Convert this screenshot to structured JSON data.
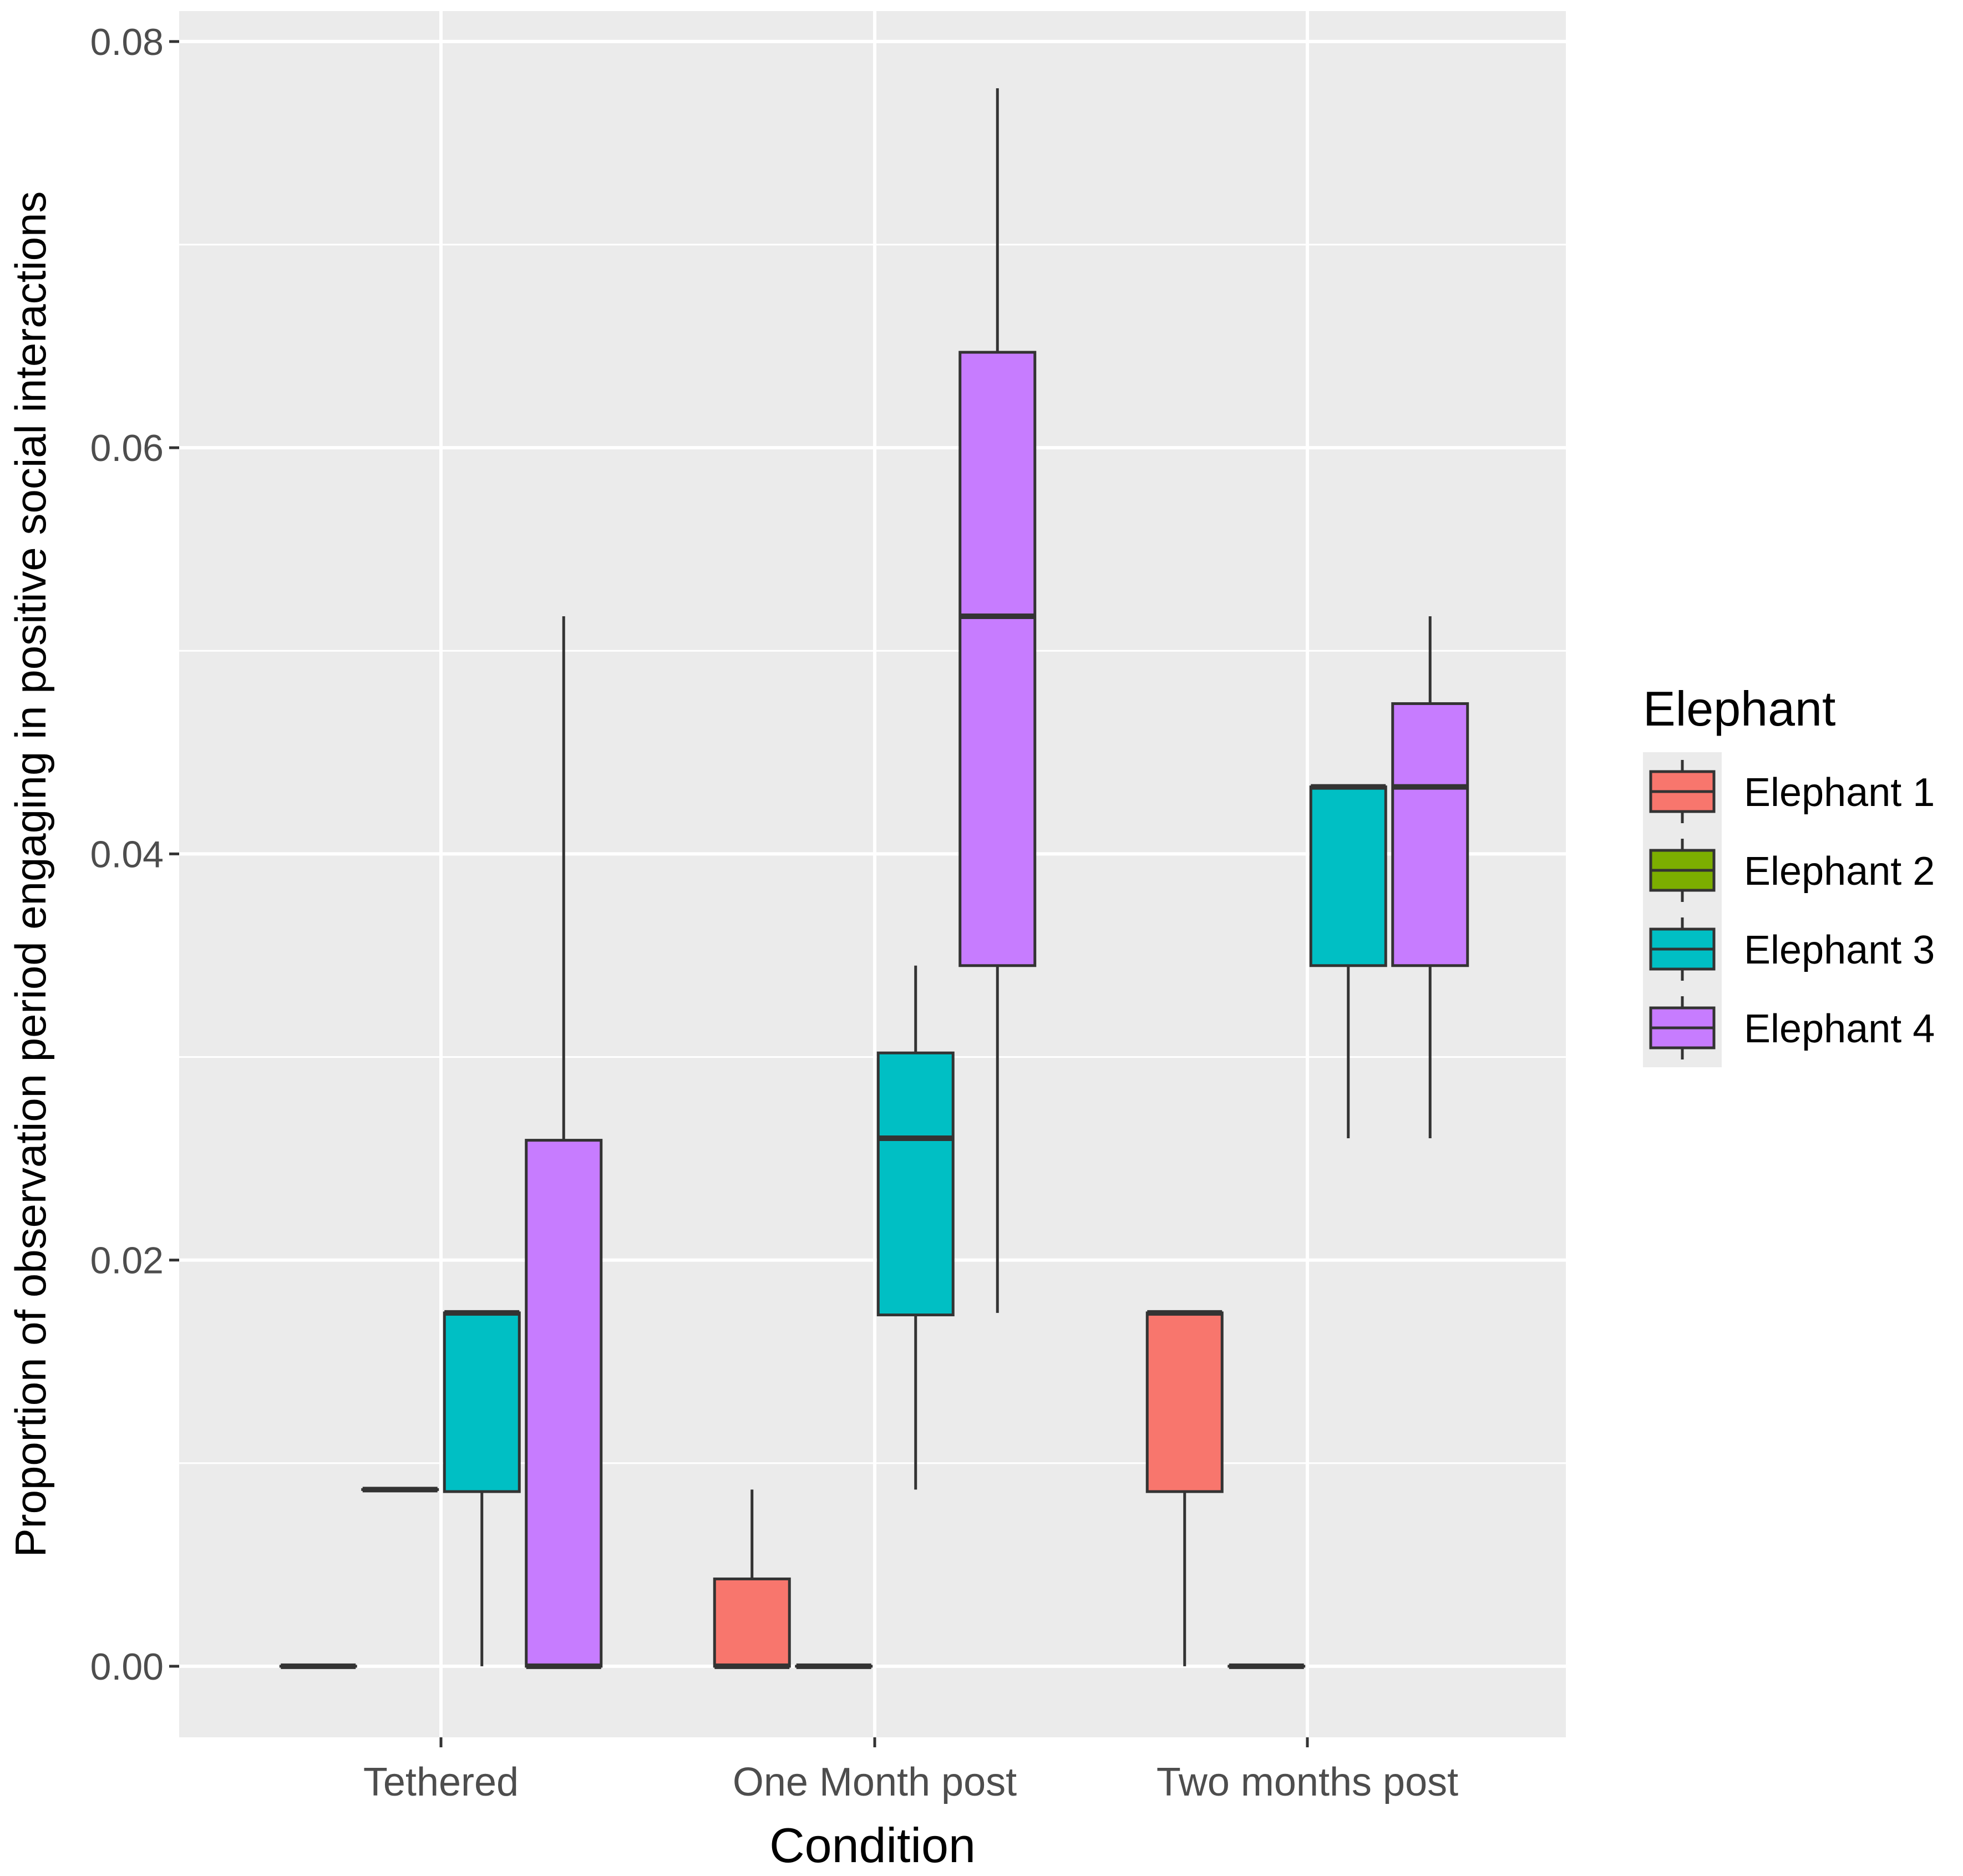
{
  "chart_data": {
    "type": "boxplot",
    "title": "",
    "xlabel": "Condition",
    "ylabel": "Proportion of observation period engaging in positive social interactions",
    "ylim": [
      -0.0035,
      0.0815
    ],
    "yticks": [
      0.0,
      0.02,
      0.04,
      0.06,
      0.08
    ],
    "ytick_labels": [
      "0.00",
      "0.02",
      "0.04",
      "0.06",
      "0.08"
    ],
    "categories": [
      "Tethered",
      "One Month post",
      "Two months post"
    ],
    "legend": {
      "title": "Elephant",
      "position": "right",
      "entries": [
        "Elephant 1",
        "Elephant 2",
        "Elephant 3",
        "Elephant 4"
      ]
    },
    "colors": {
      "Elephant 1": "#F8766D",
      "Elephant 2": "#7CAE00",
      "Elephant 3": "#00BFC4",
      "Elephant 4": "#C77CFF",
      "panel": "#EBEBEB",
      "grid": "#FFFFFF",
      "outline": "#333333"
    },
    "series": [
      {
        "name": "Elephant 1",
        "boxes": [
          {
            "category": "Tethered",
            "min": 0.0,
            "q1": 0.0,
            "median": 0.0,
            "q3": 0.0,
            "max": 0.0
          },
          {
            "category": "One Month post",
            "min": 0.0,
            "q1": 0.0,
            "median": 0.0,
            "q3": 0.0043,
            "max": 0.0087
          },
          {
            "category": "Two months post",
            "min": 0.0,
            "q1": 0.0086,
            "median": 0.0174,
            "q3": 0.0174,
            "max": 0.0174
          }
        ]
      },
      {
        "name": "Elephant 2",
        "boxes": [
          {
            "category": "Tethered",
            "min": 0.0087,
            "q1": 0.0087,
            "median": 0.0087,
            "q3": 0.0087,
            "max": 0.0087
          },
          {
            "category": "One Month post",
            "min": 0.0,
            "q1": 0.0,
            "median": 0.0,
            "q3": 0.0,
            "max": 0.0
          },
          {
            "category": "Two months post",
            "min": 0.0,
            "q1": 0.0,
            "median": 0.0,
            "q3": 0.0,
            "max": 0.0
          }
        ]
      },
      {
        "name": "Elephant 3",
        "boxes": [
          {
            "category": "Tethered",
            "min": 0.0,
            "q1": 0.0086,
            "median": 0.0174,
            "q3": 0.0174,
            "max": 0.0174
          },
          {
            "category": "One Month post",
            "min": 0.0087,
            "q1": 0.0173,
            "median": 0.026,
            "q3": 0.0302,
            "max": 0.0345
          },
          {
            "category": "Two months post",
            "min": 0.026,
            "q1": 0.0345,
            "median": 0.0433,
            "q3": 0.0433,
            "max": 0.0433
          }
        ]
      },
      {
        "name": "Elephant 4",
        "boxes": [
          {
            "category": "Tethered",
            "min": 0.0,
            "q1": 0.0,
            "median": 0.0,
            "q3": 0.0259,
            "max": 0.0517
          },
          {
            "category": "One Month post",
            "min": 0.0174,
            "q1": 0.0345,
            "median": 0.0517,
            "q3": 0.0647,
            "max": 0.0777
          },
          {
            "category": "Two months post",
            "min": 0.026,
            "q1": 0.0345,
            "median": 0.0433,
            "q3": 0.0474,
            "max": 0.0517
          }
        ]
      }
    ]
  }
}
